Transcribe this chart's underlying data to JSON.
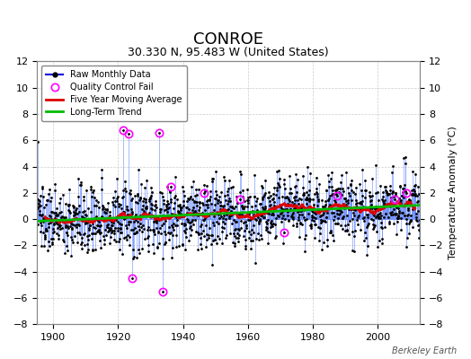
{
  "title": "CONROE",
  "subtitle": "30.330 N, 95.483 W (United States)",
  "ylabel": "Temperature Anomaly (°C)",
  "credit": "Berkeley Earth",
  "xlim": [
    1895,
    2013
  ],
  "ylim": [
    -8,
    12
  ],
  "yticks": [
    -8,
    -6,
    -4,
    -2,
    0,
    2,
    4,
    6,
    8,
    10,
    12
  ],
  "xticks": [
    1900,
    1920,
    1940,
    1960,
    1980,
    2000
  ],
  "seed": 137,
  "years_start": 1895,
  "years_end": 2013,
  "background_color": "#ffffff",
  "plot_bg_color": "#ffffff",
  "raw_color": "#0000dd",
  "raw_stem_color": "#6688ff",
  "ma_color": "#dd0000",
  "trend_color": "#00bb00",
  "qc_color": "#ff00ff",
  "title_fontsize": 13,
  "subtitle_fontsize": 9,
  "ylabel_fontsize": 8,
  "tick_fontsize": 8
}
